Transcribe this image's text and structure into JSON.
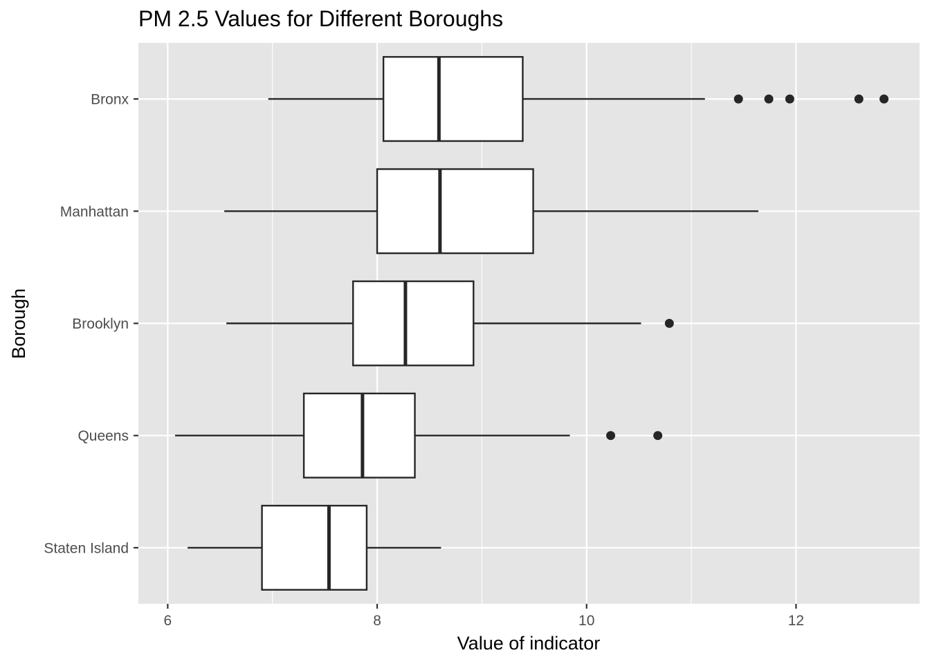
{
  "chart_data": {
    "type": "boxplot",
    "orientation": "horizontal",
    "title": "PM 2.5 Values for Different Boroughs",
    "xlabel": "Value of indicator",
    "ylabel": "Borough",
    "xlim": [
      5.72,
      13.18
    ],
    "xticks": [
      6,
      8,
      10,
      12
    ],
    "xtick_labels": [
      "6",
      "8",
      "10",
      "12"
    ],
    "grid": true,
    "legend": "none",
    "colors": {
      "panel": "#e5e5e5",
      "grid": "#ffffff",
      "box_fill": "#ffffff",
      "box_stroke": "#262626",
      "tick_text": "#4d4d4d",
      "tick_mark": "#333333"
    },
    "categories": [
      "Bronx",
      "Manhattan",
      "Brooklyn",
      "Queens",
      "Staten Island"
    ],
    "boxes": [
      {
        "category": "Bronx",
        "whisker_low": 6.96,
        "q1": 8.06,
        "median": 8.59,
        "q3": 9.39,
        "whisker_high": 11.13,
        "outliers": [
          11.45,
          11.74,
          11.94,
          12.6,
          12.84
        ]
      },
      {
        "category": "Manhattan",
        "whisker_low": 6.54,
        "q1": 8.0,
        "median": 8.6,
        "q3": 9.49,
        "whisker_high": 11.64,
        "outliers": []
      },
      {
        "category": "Brooklyn",
        "whisker_low": 6.56,
        "q1": 7.77,
        "median": 8.27,
        "q3": 8.92,
        "whisker_high": 10.52,
        "outliers": [
          10.79
        ]
      },
      {
        "category": "Queens",
        "whisker_low": 6.07,
        "q1": 7.3,
        "median": 7.86,
        "q3": 8.36,
        "whisker_high": 9.84,
        "outliers": [
          10.23,
          10.68
        ]
      },
      {
        "category": "Staten Island",
        "whisker_low": 6.19,
        "q1": 6.9,
        "median": 7.54,
        "q3": 7.9,
        "whisker_high": 8.61,
        "outliers": []
      }
    ]
  }
}
